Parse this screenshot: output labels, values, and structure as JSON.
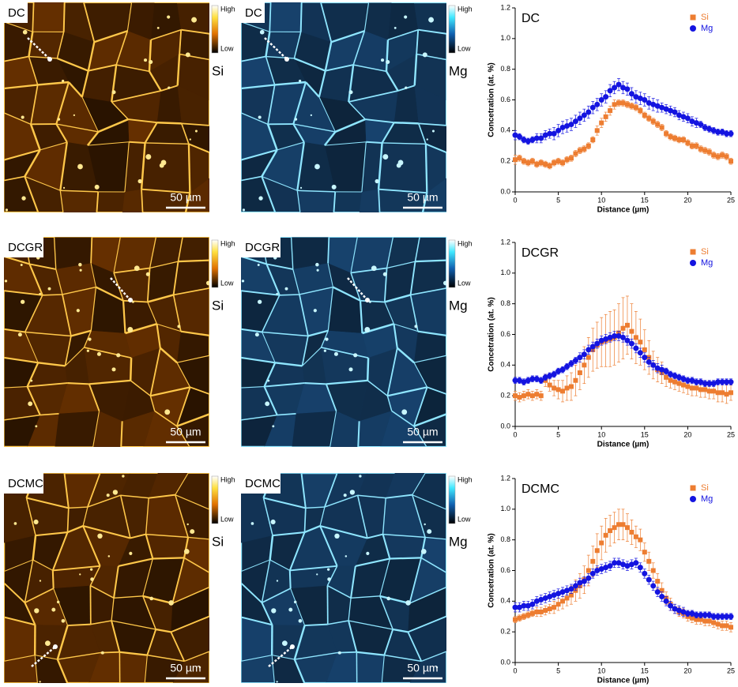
{
  "images": [
    {
      "label": "DC",
      "high": "High",
      "low": "Low",
      "element": "Si",
      "scale": "50 µm"
    },
    {
      "label": "DC",
      "high": "High",
      "low": "Low",
      "element": "Mg",
      "scale": "50 µm"
    },
    {
      "label": "DCGR",
      "high": "High",
      "low": "Low",
      "element": "Si",
      "scale": "50 µm"
    },
    {
      "label": "DCGR",
      "high": "High",
      "low": "Low",
      "element": "Mg",
      "scale": "50 µm"
    },
    {
      "label": "DCMC",
      "high": "High",
      "low": "Low",
      "element": "Si",
      "scale": "50 µm"
    },
    {
      "label": "DCMC",
      "high": "High",
      "low": "Low",
      "element": "Mg",
      "scale": "50 µm"
    }
  ],
  "chart_data": [
    {
      "type": "scatter",
      "title": "DC",
      "xlabel": "Distance (µm)",
      "ylabel": "Concetration (at. %)",
      "xlim": [
        0,
        25
      ],
      "xticks": [
        0,
        5,
        10,
        15,
        20,
        25
      ],
      "ylim": [
        0,
        1.2
      ],
      "yticks": [
        {
          "value": 0,
          "label": "0.0"
        },
        0.2,
        0.4,
        0.6,
        0.8,
        {
          "value": 1,
          "label": "1.0"
        },
        1.2
      ],
      "legend": "upper right",
      "x": [
        0,
        0.5,
        1,
        1.5,
        2,
        2.5,
        3,
        3.5,
        4,
        4.5,
        5,
        5.5,
        6,
        6.5,
        7,
        7.5,
        8,
        8.5,
        9,
        9.5,
        10,
        10.5,
        11,
        11.5,
        12,
        12.5,
        13,
        13.5,
        14,
        14.5,
        15,
        15.5,
        16,
        16.5,
        17,
        17.5,
        18,
        18.5,
        19,
        19.5,
        20,
        20.5,
        21,
        21.5,
        22,
        22.5,
        23,
        23.5,
        24,
        24.5,
        25
      ],
      "series": [
        {
          "name": "Si",
          "color": "#ed7d31",
          "marker": "square",
          "values": [
            0.21,
            0.22,
            0.2,
            0.19,
            0.2,
            0.18,
            0.19,
            0.18,
            0.17,
            0.19,
            0.2,
            0.19,
            0.21,
            0.22,
            0.25,
            0.27,
            0.28,
            0.3,
            0.34,
            0.4,
            0.45,
            0.49,
            0.53,
            0.57,
            0.58,
            0.58,
            0.57,
            0.56,
            0.55,
            0.53,
            0.5,
            0.48,
            0.46,
            0.44,
            0.42,
            0.38,
            0.36,
            0.35,
            0.34,
            0.34,
            0.32,
            0.3,
            0.3,
            0.28,
            0.27,
            0.26,
            0.24,
            0.23,
            0.24,
            0.23,
            0.2
          ],
          "errors": [
            0.03,
            0.02,
            0.02,
            0.02,
            0.02,
            0.02,
            0.02,
            0.02,
            0.02,
            0.02,
            0.02,
            0.02,
            0.02,
            0.02,
            0.02,
            0.02,
            0.02,
            0.02,
            0.02,
            0.03,
            0.03,
            0.03,
            0.03,
            0.03,
            0.02,
            0.02,
            0.02,
            0.02,
            0.02,
            0.02,
            0.02,
            0.02,
            0.02,
            0.02,
            0.02,
            0.02,
            0.02,
            0.02,
            0.02,
            0.02,
            0.02,
            0.02,
            0.02,
            0.02,
            0.02,
            0.02,
            0.02,
            0.02,
            0.02,
            0.02,
            0.02
          ]
        },
        {
          "name": "Mg",
          "color": "#1414e0",
          "marker": "circle",
          "values": [
            0.37,
            0.36,
            0.34,
            0.33,
            0.34,
            0.35,
            0.35,
            0.37,
            0.38,
            0.38,
            0.4,
            0.42,
            0.43,
            0.44,
            0.46,
            0.48,
            0.5,
            0.52,
            0.55,
            0.57,
            0.6,
            0.62,
            0.66,
            0.68,
            0.7,
            0.68,
            0.67,
            0.64,
            0.62,
            0.61,
            0.6,
            0.58,
            0.57,
            0.56,
            0.55,
            0.54,
            0.53,
            0.52,
            0.5,
            0.49,
            0.48,
            0.46,
            0.45,
            0.44,
            0.42,
            0.41,
            0.4,
            0.39,
            0.39,
            0.38,
            0.38
          ],
          "errors": [
            0.03,
            0.02,
            0.02,
            0.02,
            0.02,
            0.03,
            0.03,
            0.03,
            0.03,
            0.04,
            0.04,
            0.04,
            0.04,
            0.04,
            0.04,
            0.04,
            0.04,
            0.04,
            0.04,
            0.04,
            0.04,
            0.04,
            0.04,
            0.04,
            0.04,
            0.04,
            0.04,
            0.04,
            0.04,
            0.04,
            0.04,
            0.04,
            0.04,
            0.04,
            0.03,
            0.03,
            0.03,
            0.03,
            0.03,
            0.03,
            0.03,
            0.03,
            0.03,
            0.02,
            0.02,
            0.02,
            0.02,
            0.02,
            0.02,
            0.02,
            0.02
          ]
        }
      ]
    },
    {
      "type": "scatter",
      "title": "DCGR",
      "xlabel": "Distance (µm)",
      "ylabel": "Concetration (at. %)",
      "xlim": [
        0,
        25
      ],
      "xticks": [
        0,
        5,
        10,
        15,
        20,
        25
      ],
      "ylim": [
        0,
        1.2
      ],
      "yticks": [
        {
          "value": 0,
          "label": "0.0"
        },
        0.2,
        0.4,
        0.6,
        0.8,
        {
          "value": 1,
          "label": "1.0"
        },
        1.2
      ],
      "legend": "upper right",
      "x": [
        0,
        0.5,
        1,
        1.5,
        2,
        2.5,
        3,
        3.5,
        4,
        4.5,
        5,
        5.5,
        6,
        6.5,
        7,
        7.5,
        8,
        8.5,
        9,
        9.5,
        10,
        10.5,
        11,
        11.5,
        12,
        12.5,
        13,
        13.5,
        14,
        14.5,
        15,
        15.5,
        16,
        16.5,
        17,
        17.5,
        18,
        18.5,
        19,
        19.5,
        20,
        20.5,
        21,
        21.5,
        22,
        22.5,
        23,
        23.5,
        24,
        24.5,
        25
      ],
      "series": [
        {
          "name": "Si",
          "color": "#ed7d31",
          "marker": "square",
          "values": [
            0.2,
            0.19,
            0.2,
            0.21,
            0.2,
            0.21,
            0.2,
            0.3,
            0.27,
            0.25,
            0.24,
            0.23,
            0.25,
            0.26,
            0.3,
            0.35,
            0.4,
            0.45,
            0.5,
            0.53,
            0.55,
            0.56,
            0.57,
            0.58,
            0.61,
            0.64,
            0.66,
            0.62,
            0.58,
            0.55,
            0.5,
            0.45,
            0.4,
            0.37,
            0.35,
            0.32,
            0.3,
            0.29,
            0.28,
            0.27,
            0.26,
            0.25,
            0.25,
            0.24,
            0.24,
            0.23,
            0.23,
            0.22,
            0.22,
            0.21,
            0.22
          ],
          "errors": [
            0.03,
            0.03,
            0.03,
            0.03,
            0.03,
            0.03,
            0.03,
            0.04,
            0.04,
            0.05,
            0.06,
            0.07,
            0.08,
            0.09,
            0.1,
            0.11,
            0.12,
            0.13,
            0.14,
            0.15,
            0.16,
            0.17,
            0.18,
            0.18,
            0.19,
            0.2,
            0.19,
            0.18,
            0.17,
            0.15,
            0.13,
            0.11,
            0.09,
            0.08,
            0.07,
            0.06,
            0.05,
            0.05,
            0.05,
            0.05,
            0.05,
            0.05,
            0.05,
            0.05,
            0.05,
            0.05,
            0.05,
            0.06,
            0.06,
            0.06,
            0.05
          ]
        },
        {
          "name": "Mg",
          "color": "#1414e0",
          "marker": "circle",
          "values": [
            0.3,
            0.3,
            0.29,
            0.3,
            0.31,
            0.31,
            0.3,
            0.32,
            0.33,
            0.34,
            0.36,
            0.37,
            0.39,
            0.41,
            0.43,
            0.45,
            0.47,
            0.5,
            0.52,
            0.54,
            0.56,
            0.57,
            0.58,
            0.59,
            0.59,
            0.58,
            0.56,
            0.54,
            0.51,
            0.48,
            0.45,
            0.42,
            0.4,
            0.38,
            0.37,
            0.36,
            0.34,
            0.33,
            0.32,
            0.31,
            0.3,
            0.3,
            0.29,
            0.29,
            0.28,
            0.28,
            0.28,
            0.29,
            0.29,
            0.29,
            0.29
          ],
          "errors": [
            0.02,
            0.02,
            0.02,
            0.02,
            0.02,
            0.02,
            0.02,
            0.02,
            0.02,
            0.02,
            0.02,
            0.02,
            0.02,
            0.02,
            0.02,
            0.03,
            0.03,
            0.03,
            0.03,
            0.03,
            0.03,
            0.03,
            0.03,
            0.03,
            0.03,
            0.03,
            0.03,
            0.03,
            0.03,
            0.03,
            0.03,
            0.03,
            0.03,
            0.03,
            0.03,
            0.02,
            0.02,
            0.02,
            0.02,
            0.02,
            0.02,
            0.02,
            0.02,
            0.02,
            0.02,
            0.02,
            0.02,
            0.02,
            0.02,
            0.02,
            0.02
          ]
        }
      ]
    },
    {
      "type": "scatter",
      "title": "DCMC",
      "xlabel": "Distance (µm)",
      "ylabel": "Concetration (at. %)",
      "xlim": [
        0,
        25
      ],
      "xticks": [
        0,
        5,
        10,
        15,
        20,
        25
      ],
      "ylim": [
        0,
        1.2
      ],
      "yticks": [
        {
          "value": 0,
          "label": "0.0"
        },
        0.2,
        0.4,
        0.6,
        0.8,
        {
          "value": 1,
          "label": "1.0"
        },
        1.2
      ],
      "legend": "upper right",
      "x": [
        0,
        0.5,
        1,
        1.5,
        2,
        2.5,
        3,
        3.5,
        4,
        4.5,
        5,
        5.5,
        6,
        6.5,
        7,
        7.5,
        8,
        8.5,
        9,
        9.5,
        10,
        10.5,
        11,
        11.5,
        12,
        12.5,
        13,
        13.5,
        14,
        14.5,
        15,
        15.5,
        16,
        16.5,
        17,
        17.5,
        18,
        18.5,
        19,
        19.5,
        20,
        20.5,
        21,
        21.5,
        22,
        22.5,
        23,
        23.5,
        24,
        24.5,
        25
      ],
      "series": [
        {
          "name": "Si",
          "color": "#ed7d31",
          "marker": "square",
          "values": [
            0.28,
            0.29,
            0.3,
            0.31,
            0.32,
            0.33,
            0.33,
            0.34,
            0.35,
            0.36,
            0.38,
            0.4,
            0.42,
            0.44,
            0.47,
            0.5,
            0.54,
            0.6,
            0.66,
            0.73,
            0.78,
            0.83,
            0.86,
            0.88,
            0.9,
            0.9,
            0.88,
            0.85,
            0.82,
            0.8,
            0.72,
            0.66,
            0.6,
            0.53,
            0.47,
            0.42,
            0.38,
            0.35,
            0.33,
            0.32,
            0.3,
            0.29,
            0.28,
            0.28,
            0.27,
            0.27,
            0.26,
            0.25,
            0.24,
            0.24,
            0.23
          ],
          "errors": [
            0.02,
            0.02,
            0.02,
            0.02,
            0.02,
            0.03,
            0.03,
            0.03,
            0.03,
            0.04,
            0.04,
            0.05,
            0.05,
            0.06,
            0.07,
            0.08,
            0.09,
            0.1,
            0.1,
            0.11,
            0.11,
            0.11,
            0.1,
            0.1,
            0.1,
            0.1,
            0.09,
            0.08,
            0.07,
            0.07,
            0.06,
            0.06,
            0.05,
            0.05,
            0.05,
            0.04,
            0.04,
            0.03,
            0.03,
            0.03,
            0.03,
            0.03,
            0.03,
            0.03,
            0.03,
            0.03,
            0.03,
            0.03,
            0.03,
            0.03,
            0.03
          ]
        },
        {
          "name": "Mg",
          "color": "#1414e0",
          "marker": "circle",
          "values": [
            0.36,
            0.36,
            0.37,
            0.37,
            0.38,
            0.4,
            0.41,
            0.42,
            0.43,
            0.44,
            0.45,
            0.46,
            0.47,
            0.48,
            0.5,
            0.52,
            0.53,
            0.55,
            0.58,
            0.6,
            0.61,
            0.62,
            0.63,
            0.65,
            0.65,
            0.64,
            0.63,
            0.64,
            0.65,
            0.62,
            0.58,
            0.54,
            0.5,
            0.46,
            0.43,
            0.4,
            0.37,
            0.35,
            0.34,
            0.33,
            0.32,
            0.32,
            0.31,
            0.31,
            0.31,
            0.31,
            0.3,
            0.3,
            0.3,
            0.3,
            0.3
          ],
          "errors": [
            0.03,
            0.03,
            0.03,
            0.03,
            0.03,
            0.03,
            0.03,
            0.03,
            0.03,
            0.03,
            0.03,
            0.03,
            0.03,
            0.03,
            0.03,
            0.03,
            0.03,
            0.03,
            0.03,
            0.03,
            0.03,
            0.03,
            0.03,
            0.03,
            0.03,
            0.03,
            0.03,
            0.03,
            0.03,
            0.03,
            0.03,
            0.03,
            0.03,
            0.03,
            0.03,
            0.03,
            0.03,
            0.03,
            0.03,
            0.03,
            0.02,
            0.02,
            0.02,
            0.02,
            0.02,
            0.02,
            0.02,
            0.02,
            0.02,
            0.02,
            0.02
          ]
        }
      ]
    }
  ]
}
